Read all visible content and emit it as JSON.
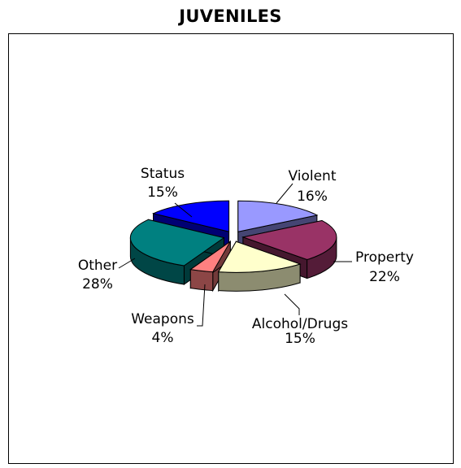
{
  "chart_data": {
    "type": "pie",
    "title": "JUVENILES",
    "slices": [
      {
        "label": "Violent",
        "value": 16,
        "value_label": "16%",
        "color": "#9999ff"
      },
      {
        "label": "Property",
        "value": 22,
        "value_label": "22%",
        "color": "#993366"
      },
      {
        "label": "Alcohol/Drugs",
        "value": 15,
        "value_label": "15%",
        "color": "#ffffcc"
      },
      {
        "label": "Weapons",
        "value": 4,
        "value_label": "4%",
        "color": "#ff8080"
      },
      {
        "label": "Other",
        "value": 28,
        "value_label": "28%",
        "color": "#008080"
      },
      {
        "label": "Status",
        "value": 15,
        "value_label": "15%",
        "color": "#0000ff"
      }
    ],
    "style": "3d-exploded",
    "legend": "none"
  }
}
